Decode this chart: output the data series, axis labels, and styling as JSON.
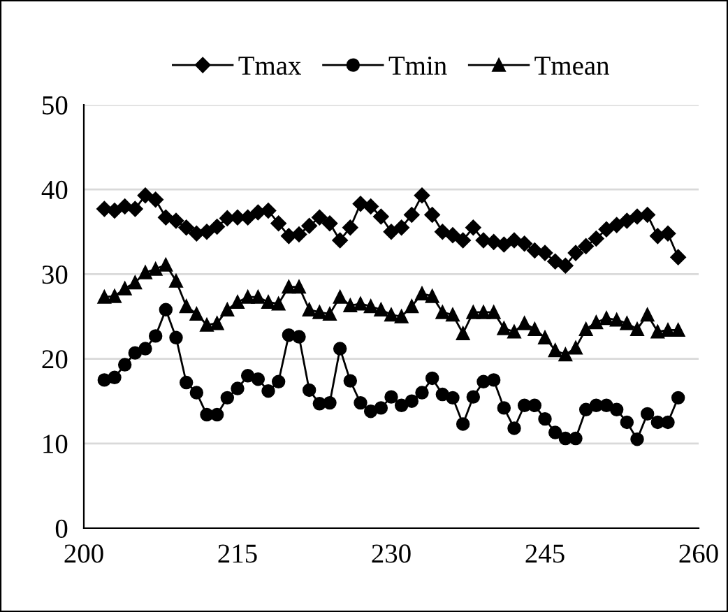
{
  "chart_data": {
    "type": "line",
    "x": [
      202,
      203,
      204,
      205,
      206,
      207,
      208,
      209,
      210,
      211,
      212,
      213,
      214,
      215,
      216,
      217,
      218,
      219,
      220,
      221,
      222,
      223,
      224,
      225,
      226,
      227,
      228,
      229,
      230,
      231,
      232,
      233,
      234,
      235,
      236,
      237,
      238,
      239,
      240,
      241,
      242,
      243,
      244,
      245,
      246,
      247,
      248,
      249,
      250,
      251,
      252,
      253,
      254,
      255,
      256,
      257,
      258
    ],
    "series": [
      {
        "name": "Tmax",
        "color": "#000000",
        "marker": "diamond",
        "values": [
          37.7,
          37.5,
          38,
          37.7,
          39.3,
          38.8,
          36.7,
          36.3,
          35.5,
          34.8,
          35,
          35.6,
          36.6,
          36.7,
          36.7,
          37.3,
          37.5,
          36,
          34.5,
          34.7,
          35.7,
          36.7,
          36,
          34,
          35.5,
          38.3,
          38,
          36.8,
          35,
          35.5,
          37,
          39.3,
          37,
          35,
          34.6,
          34,
          35.5,
          34,
          33.8,
          33.5,
          34,
          33.6,
          32.8,
          32.5,
          31.5,
          31,
          32.5,
          33.3,
          34.2,
          35.3,
          35.8,
          36.3,
          36.8,
          37,
          34.5,
          34.8,
          32
        ]
      },
      {
        "name": "Tmin",
        "color": "#000000",
        "marker": "circle",
        "values": [
          17.5,
          17.8,
          19.3,
          20.7,
          21.2,
          22.7,
          25.8,
          22.5,
          17.2,
          16,
          13.4,
          13.4,
          15.4,
          16.5,
          18,
          17.6,
          16.2,
          17.3,
          22.8,
          22.6,
          16.3,
          14.7,
          14.8,
          21.2,
          17.4,
          14.8,
          13.8,
          14.2,
          15.5,
          14.5,
          15,
          16,
          17.7,
          15.8,
          15.4,
          12.3,
          15.5,
          17.3,
          17.5,
          14.2,
          11.8,
          14.5,
          14.5,
          12.9,
          11.3,
          10.6,
          10.6,
          14,
          14.5,
          14.5,
          14,
          12.5,
          10.5,
          13.5,
          12.5,
          12.5,
          15.4
        ]
      },
      {
        "name": "Tmean",
        "color": "#000000",
        "marker": "triangle",
        "values": [
          27.3,
          27.4,
          28.3,
          29,
          30.2,
          30.6,
          31.1,
          29.2,
          26.2,
          25.3,
          24,
          24.2,
          25.8,
          26.7,
          27.3,
          27.3,
          26.7,
          26.5,
          28.5,
          28.5,
          25.8,
          25.5,
          25.3,
          27.3,
          26.3,
          26.5,
          26.2,
          25.8,
          25.2,
          25,
          26.2,
          27.7,
          27.4,
          25.5,
          25.2,
          23,
          25.5,
          25.5,
          25.5,
          23.6,
          23.2,
          24.2,
          23.5,
          22.5,
          21,
          20.5,
          21.3,
          23.5,
          24.3,
          24.8,
          24.6,
          24.2,
          23.5,
          25.2,
          23.2,
          23.4,
          23.4
        ]
      }
    ],
    "xlim": [
      200,
      260
    ],
    "xticks": [
      200,
      215,
      230,
      245,
      260
    ],
    "ylim": [
      0,
      50
    ],
    "yticks": [
      0,
      10,
      20,
      30,
      40,
      50
    ],
    "grid": "y",
    "legend": "top",
    "line_style": "solid"
  }
}
